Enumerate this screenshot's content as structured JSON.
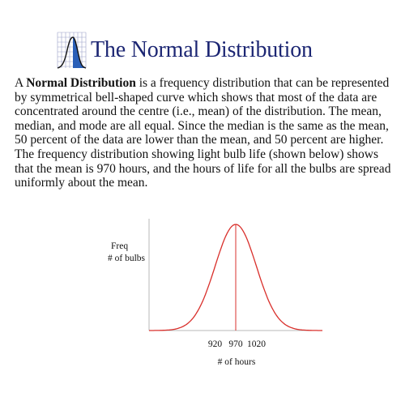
{
  "document": {
    "title": "The Normal Distribution",
    "logo_icon": "normal-curve-grid-icon",
    "paragraph": {
      "lead": "A ",
      "term": "Normal Distribution",
      "rest": " is a frequency distribution that can be represented by symmetrical bell-shaped curve which shows that most of the data are concentrated around the centre (i.e., mean) of the distribution. The mean, median, and mode are all equal. Since the median is the same as the mean, 50 percent of the data are lower than the mean, and 50 percent are higher. The frequency distribution showing light bulb life (shown below) shows that the mean is 970 hours, and the hours of life for all the bulbs are spread uniformly about the mean."
    }
  },
  "chart_data": {
    "type": "line",
    "title": "",
    "ylabel_line1": "Freq",
    "ylabel_line2": "# of bulbs",
    "xlabel": "# of hours",
    "x_ticks": [
      920,
      970,
      1020
    ],
    "mean": 970,
    "std": 50,
    "xlim": [
      760,
      1180
    ],
    "curve_color": "#d9302c",
    "axis_color": "#b8b8b8",
    "mean_line_color": "#d9302c"
  }
}
